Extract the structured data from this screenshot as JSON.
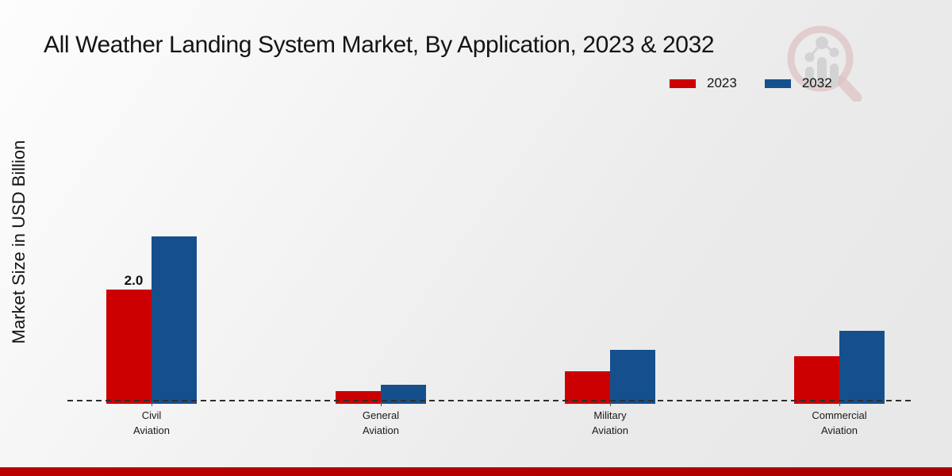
{
  "title": "All Weather Landing System Market, By Application, 2023 & 2032",
  "ylabel": "Market Size in USD Billion",
  "colors": {
    "series_2023": "#cc0000",
    "series_2032": "#15508c",
    "footer_bar": "#b70000"
  },
  "chart_data": {
    "type": "bar",
    "title": "All Weather Landing System Market, By Application, 2023 & 2032",
    "xlabel": "",
    "ylabel": "Market Size in USD Billion",
    "categories": [
      "Civil Aviation",
      "General Aviation",
      "Military Aviation",
      "Commercial Aviation"
    ],
    "series": [
      {
        "name": "2023",
        "color": "#cc0000",
        "values": [
          2.0,
          0.19,
          0.54,
          0.81
        ]
      },
      {
        "name": "2032",
        "color": "#15508c",
        "values": [
          2.95,
          0.3,
          0.92,
          1.26
        ]
      }
    ],
    "annotations": [
      {
        "series": "2023",
        "category": "Civil Aviation",
        "text": "2.0"
      }
    ],
    "ylim": [
      0,
      3.2
    ],
    "grid": false,
    "y_axis_ticks_visible": false,
    "baseline_style": "dashed",
    "legend_position": "top-right"
  }
}
